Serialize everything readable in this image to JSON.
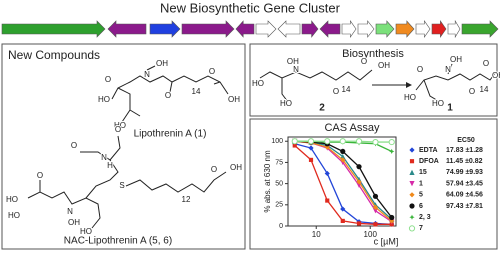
{
  "header": {
    "title": "New Biosynthetic Gene Cluster"
  },
  "compounds_panel": {
    "title": "New Compounds",
    "lipothrenin": {
      "name": "Lipothrenin A (1)",
      "atoms": [
        "O",
        "HO",
        "N",
        "OH",
        "O",
        "14",
        "O",
        "OH",
        "HO"
      ]
    },
    "nac_lipothrenin": {
      "name": "NAC-Lipothrenin A (5, 6)",
      "atoms": [
        "H",
        "N",
        "O",
        "O",
        "HO",
        "S",
        "O",
        "HO",
        "N",
        "OH",
        "12",
        "O",
        "OH",
        "HO"
      ]
    }
  },
  "biosynthesis_panel": {
    "title": "Biosynthesis",
    "substrate": {
      "number": "2",
      "atoms": [
        "O",
        "HO",
        "H",
        "N",
        "O",
        "14",
        "O",
        "OH",
        "HO"
      ]
    },
    "product": {
      "number": "1",
      "atoms": [
        "O",
        "HO",
        "N",
        "OH",
        "O",
        "14",
        "O",
        "OH",
        "HO"
      ]
    }
  },
  "chart_data": {
    "type": "line",
    "title": "CAS Assay",
    "xlabel": "c [µM]",
    "ylabel": "% abs. at 630 nm",
    "legend_title": "EC50",
    "xscale": "log",
    "xlim": [
      3,
      300
    ],
    "xticks": [
      10,
      100
    ],
    "ylim": [
      0,
      105
    ],
    "yticks": [
      0,
      25,
      50,
      75,
      100
    ],
    "x": [
      4,
      8,
      16,
      31,
      62,
      125,
      250
    ],
    "series": [
      {
        "name": "EDTA",
        "ec50": "17.83 ±1.28",
        "color": "#2346d8",
        "marker": "diamond",
        "values": [
          97,
          92,
          62,
          20,
          5,
          3,
          2
        ]
      },
      {
        "name": "DFOA",
        "ec50": "11.45 ±0.82",
        "color": "#e02a1e",
        "marker": "square",
        "values": [
          95,
          78,
          30,
          6,
          3,
          2,
          2
        ]
      },
      {
        "name": "15",
        "ec50": "74.99 ±9.93",
        "color": "#2a8a8a",
        "marker": "triangle",
        "values": [
          100,
          99,
          95,
          82,
          55,
          25,
          8
        ]
      },
      {
        "name": "1",
        "ec50": "57.94 ±3.45",
        "color": "#d62aa8",
        "marker": "triangle-down",
        "values": [
          100,
          98,
          92,
          75,
          48,
          18,
          5
        ]
      },
      {
        "name": "5",
        "ec50": "64.09 ±4.56",
        "color": "#f08a1c",
        "marker": "diamond",
        "values": [
          100,
          98,
          93,
          78,
          52,
          22,
          6
        ]
      },
      {
        "name": "6",
        "ec50": "97.43 ±7.81",
        "color": "#111111",
        "marker": "circle",
        "values": [
          100,
          99,
          97,
          88,
          70,
          35,
          10
        ]
      },
      {
        "name": "2, 3",
        "color": "#3ab53a",
        "marker": "star",
        "values": [
          100,
          100,
          99,
          99,
          98,
          97,
          88
        ]
      },
      {
        "name": "7",
        "color": "#8fe08f",
        "marker": "open-circle",
        "values": [
          100,
          100,
          100,
          100,
          100,
          99,
          99
        ]
      }
    ]
  }
}
